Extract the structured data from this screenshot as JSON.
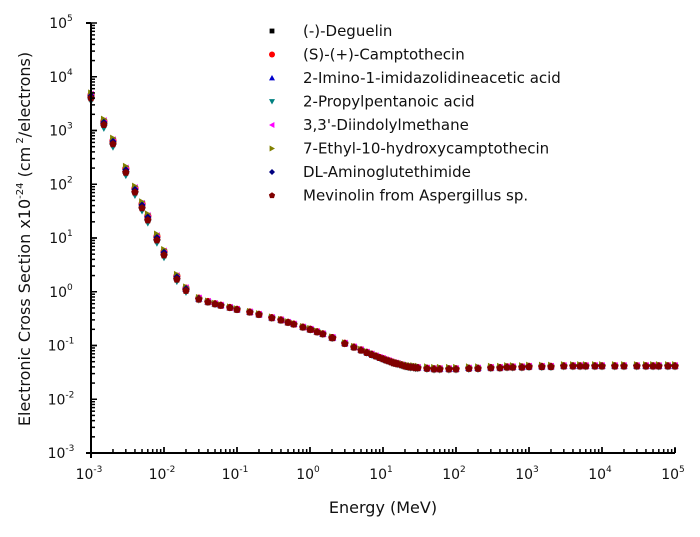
{
  "chart_data": {
    "type": "scatter",
    "title": "",
    "xlabel": "Energy (MeV)",
    "ylabel_main": "Electronic Cross Section x10",
    "ylabel_exp": "-24",
    "ylabel_unit_pre": "(cm",
    "ylabel_unit_exp": "2",
    "ylabel_unit_post": "/electrons)",
    "xscale": "log",
    "yscale": "log",
    "xlim": [
      0.001,
      100000
    ],
    "ylim": [
      0.001,
      100000
    ],
    "x_ticks": [
      {
        "base": "10",
        "exp": "-3"
      },
      {
        "base": "10",
        "exp": "-2"
      },
      {
        "base": "10",
        "exp": "-1"
      },
      {
        "base": "10",
        "exp": "0"
      },
      {
        "base": "10",
        "exp": "1"
      },
      {
        "base": "10",
        "exp": "2"
      },
      {
        "base": "10",
        "exp": "3"
      },
      {
        "base": "10",
        "exp": "4"
      },
      {
        "base": "10",
        "exp": "5"
      }
    ],
    "y_ticks": [
      {
        "base": "10",
        "exp": "-3"
      },
      {
        "base": "10",
        "exp": "-2"
      },
      {
        "base": "10",
        "exp": "-1"
      },
      {
        "base": "10",
        "exp": "0"
      },
      {
        "base": "10",
        "exp": "1"
      },
      {
        "base": "10",
        "exp": "2"
      },
      {
        "base": "10",
        "exp": "3"
      },
      {
        "base": "10",
        "exp": "4"
      },
      {
        "base": "10",
        "exp": "5"
      }
    ],
    "grid": false,
    "legend_position": "top-right",
    "x": [
      0.001,
      0.0015,
      0.002,
      0.003,
      0.004,
      0.005,
      0.006,
      0.008,
      0.01,
      0.015,
      0.02,
      0.03,
      0.04,
      0.05,
      0.06,
      0.08,
      0.1,
      0.15,
      0.2,
      0.3,
      0.4,
      0.5,
      0.6,
      0.8,
      1.0,
      1.022,
      1.25,
      1.5,
      2.0,
      2.044,
      3.0,
      4.0,
      5.0,
      6.0,
      7.0,
      8.0,
      9.0,
      10,
      11,
      12,
      13,
      14,
      15,
      16,
      18,
      20,
      22,
      24,
      26,
      28,
      30,
      40,
      50,
      60,
      80,
      100,
      150,
      200,
      300,
      400,
      500,
      600,
      800,
      1000,
      1500,
      2000,
      3000,
      4000,
      5000,
      6000,
      8000,
      10000,
      15000,
      20000,
      30000,
      40000,
      50000,
      60000,
      80000,
      100000
    ],
    "series": [
      {
        "name": "(-)-Deguelin",
        "marker": "square",
        "color": "#000000",
        "values": [
          4500,
          1450,
          640,
          190,
          82,
          42,
          25,
          10.5,
          5.5,
          1.9,
          1.15,
          0.75,
          0.66,
          0.6,
          0.56,
          0.51,
          0.47,
          0.42,
          0.38,
          0.33,
          0.3,
          0.27,
          0.25,
          0.22,
          0.2,
          0.2,
          0.18,
          0.165,
          0.14,
          0.14,
          0.11,
          0.094,
          0.083,
          0.075,
          0.069,
          0.064,
          0.06,
          0.057,
          0.054,
          0.052,
          0.05,
          0.048,
          0.047,
          0.046,
          0.044,
          0.042,
          0.041,
          0.04,
          0.04,
          0.039,
          0.039,
          0.038,
          0.037,
          0.037,
          0.037,
          0.037,
          0.038,
          0.038,
          0.039,
          0.039,
          0.04,
          0.04,
          0.04,
          0.041,
          0.041,
          0.041,
          0.042,
          0.042,
          0.042,
          0.042,
          0.042,
          0.042,
          0.042,
          0.042,
          0.042,
          0.042,
          0.042,
          0.042,
          0.042,
          0.042
        ]
      },
      {
        "name": "(S)-(+)-Camptothecin",
        "marker": "circle",
        "color": "#ff0000",
        "values": [
          4600,
          1480,
          650,
          195,
          84,
          43,
          25.5,
          10.7,
          5.6,
          1.95,
          1.17,
          0.76,
          0.66,
          0.6,
          0.56,
          0.51,
          0.47,
          0.42,
          0.38,
          0.33,
          0.3,
          0.27,
          0.25,
          0.22,
          0.2,
          0.2,
          0.18,
          0.165,
          0.14,
          0.14,
          0.11,
          0.094,
          0.083,
          0.075,
          0.069,
          0.064,
          0.06,
          0.057,
          0.054,
          0.052,
          0.05,
          0.048,
          0.047,
          0.046,
          0.044,
          0.042,
          0.041,
          0.04,
          0.04,
          0.039,
          0.039,
          0.038,
          0.037,
          0.037,
          0.037,
          0.037,
          0.038,
          0.038,
          0.039,
          0.039,
          0.04,
          0.04,
          0.04,
          0.041,
          0.041,
          0.041,
          0.042,
          0.042,
          0.042,
          0.042,
          0.042,
          0.042,
          0.042,
          0.042,
          0.042,
          0.042,
          0.042,
          0.042,
          0.042,
          0.042
        ]
      },
      {
        "name": "2-Imino-1-imidazolidineacetic acid",
        "marker": "triangle-up",
        "color": "#0000cc",
        "values": [
          4300,
          1380,
          610,
          180,
          78,
          40,
          24,
          10,
          5.3,
          1.85,
          1.12,
          0.74,
          0.65,
          0.6,
          0.56,
          0.51,
          0.47,
          0.42,
          0.38,
          0.33,
          0.3,
          0.27,
          0.25,
          0.22,
          0.2,
          0.2,
          0.18,
          0.165,
          0.14,
          0.14,
          0.11,
          0.094,
          0.083,
          0.075,
          0.069,
          0.064,
          0.06,
          0.057,
          0.054,
          0.052,
          0.05,
          0.048,
          0.047,
          0.046,
          0.044,
          0.042,
          0.041,
          0.04,
          0.04,
          0.039,
          0.039,
          0.038,
          0.037,
          0.037,
          0.037,
          0.037,
          0.038,
          0.038,
          0.039,
          0.039,
          0.04,
          0.04,
          0.04,
          0.041,
          0.041,
          0.041,
          0.042,
          0.042,
          0.042,
          0.042,
          0.042,
          0.042,
          0.042,
          0.042,
          0.042,
          0.042,
          0.042,
          0.042,
          0.042,
          0.042
        ]
      },
      {
        "name": "2-Propylpentanoic acid",
        "marker": "triangle-down",
        "color": "#008080",
        "values": [
          3500,
          1100,
          490,
          145,
          62,
          32,
          19,
          8,
          4.3,
          1.55,
          0.98,
          0.7,
          0.63,
          0.58,
          0.55,
          0.5,
          0.46,
          0.41,
          0.37,
          0.32,
          0.29,
          0.265,
          0.245,
          0.215,
          0.195,
          0.195,
          0.175,
          0.16,
          0.136,
          0.136,
          0.107,
          0.091,
          0.08,
          0.072,
          0.066,
          0.062,
          0.058,
          0.055,
          0.052,
          0.05,
          0.048,
          0.046,
          0.045,
          0.044,
          0.042,
          0.04,
          0.039,
          0.038,
          0.038,
          0.037,
          0.037,
          0.036,
          0.035,
          0.035,
          0.035,
          0.035,
          0.036,
          0.036,
          0.037,
          0.037,
          0.038,
          0.038,
          0.038,
          0.039,
          0.039,
          0.039,
          0.04,
          0.04,
          0.04,
          0.04,
          0.04,
          0.04,
          0.04,
          0.04,
          0.04,
          0.04,
          0.04,
          0.04,
          0.04,
          0.04
        ]
      },
      {
        "name": "3,3'-Diindolylmethane",
        "marker": "triangle-left",
        "color": "#ff00ff",
        "values": [
          4700,
          1520,
          670,
          200,
          86,
          44,
          26,
          11,
          5.7,
          1.98,
          1.18,
          0.76,
          0.66,
          0.6,
          0.56,
          0.51,
          0.47,
          0.42,
          0.38,
          0.33,
          0.3,
          0.27,
          0.25,
          0.22,
          0.2,
          0.2,
          0.18,
          0.165,
          0.14,
          0.14,
          0.11,
          0.094,
          0.083,
          0.075,
          0.069,
          0.064,
          0.06,
          0.057,
          0.054,
          0.052,
          0.05,
          0.048,
          0.047,
          0.046,
          0.044,
          0.042,
          0.041,
          0.04,
          0.04,
          0.039,
          0.039,
          0.038,
          0.037,
          0.037,
          0.037,
          0.037,
          0.038,
          0.038,
          0.039,
          0.039,
          0.04,
          0.04,
          0.04,
          0.041,
          0.041,
          0.041,
          0.042,
          0.042,
          0.042,
          0.042,
          0.042,
          0.042,
          0.042,
          0.042,
          0.042,
          0.042,
          0.042,
          0.042,
          0.042,
          0.042
        ]
      },
      {
        "name": "7-Ethyl-10-hydroxycamptothecin",
        "marker": "triangle-right",
        "color": "#808000",
        "values": [
          5000,
          1620,
          720,
          215,
          92,
          47,
          28,
          11.8,
          6.1,
          2.1,
          1.23,
          0.78,
          0.67,
          0.61,
          0.57,
          0.52,
          0.48,
          0.43,
          0.39,
          0.34,
          0.305,
          0.275,
          0.255,
          0.225,
          0.205,
          0.205,
          0.185,
          0.168,
          0.143,
          0.143,
          0.112,
          0.096,
          0.085,
          0.077,
          0.071,
          0.066,
          0.062,
          0.059,
          0.056,
          0.054,
          0.052,
          0.05,
          0.049,
          0.048,
          0.046,
          0.044,
          0.043,
          0.042,
          0.042,
          0.041,
          0.041,
          0.04,
          0.039,
          0.039,
          0.039,
          0.039,
          0.04,
          0.04,
          0.041,
          0.041,
          0.042,
          0.042,
          0.042,
          0.043,
          0.043,
          0.043,
          0.044,
          0.044,
          0.044,
          0.044,
          0.044,
          0.044,
          0.044,
          0.044,
          0.044,
          0.044,
          0.044,
          0.044,
          0.044,
          0.044
        ]
      },
      {
        "name": "DL-Aminoglutethimide",
        "marker": "diamond",
        "color": "#000080",
        "values": [
          4400,
          1420,
          625,
          185,
          80,
          41,
          24.5,
          10.2,
          5.4,
          1.88,
          1.14,
          0.75,
          0.65,
          0.6,
          0.56,
          0.51,
          0.47,
          0.42,
          0.38,
          0.33,
          0.3,
          0.27,
          0.25,
          0.22,
          0.2,
          0.2,
          0.18,
          0.165,
          0.14,
          0.14,
          0.11,
          0.094,
          0.083,
          0.075,
          0.069,
          0.064,
          0.06,
          0.057,
          0.054,
          0.052,
          0.05,
          0.048,
          0.047,
          0.046,
          0.044,
          0.042,
          0.041,
          0.04,
          0.04,
          0.039,
          0.039,
          0.038,
          0.037,
          0.037,
          0.037,
          0.037,
          0.038,
          0.038,
          0.039,
          0.039,
          0.04,
          0.04,
          0.04,
          0.041,
          0.041,
          0.041,
          0.042,
          0.042,
          0.042,
          0.042,
          0.042,
          0.042,
          0.042,
          0.042,
          0.042,
          0.042,
          0.042,
          0.042,
          0.042,
          0.042
        ]
      },
      {
        "name": "Mevinolin from Aspergillus sp.",
        "marker": "pentagon",
        "color": "#800000",
        "values": [
          4000,
          1280,
          560,
          165,
          71,
          36,
          21.5,
          9.1,
          4.8,
          1.7,
          1.05,
          0.72,
          0.64,
          0.59,
          0.555,
          0.505,
          0.465,
          0.415,
          0.375,
          0.325,
          0.295,
          0.268,
          0.248,
          0.218,
          0.198,
          0.198,
          0.178,
          0.163,
          0.138,
          0.138,
          0.108,
          0.092,
          0.081,
          0.073,
          0.067,
          0.063,
          0.059,
          0.056,
          0.053,
          0.051,
          0.049,
          0.047,
          0.046,
          0.045,
          0.043,
          0.041,
          0.04,
          0.039,
          0.039,
          0.038,
          0.038,
          0.037,
          0.036,
          0.036,
          0.036,
          0.036,
          0.037,
          0.037,
          0.038,
          0.038,
          0.039,
          0.039,
          0.039,
          0.04,
          0.04,
          0.04,
          0.041,
          0.041,
          0.041,
          0.041,
          0.041,
          0.041,
          0.041,
          0.041,
          0.041,
          0.041,
          0.041,
          0.041,
          0.041,
          0.041
        ]
      }
    ]
  }
}
